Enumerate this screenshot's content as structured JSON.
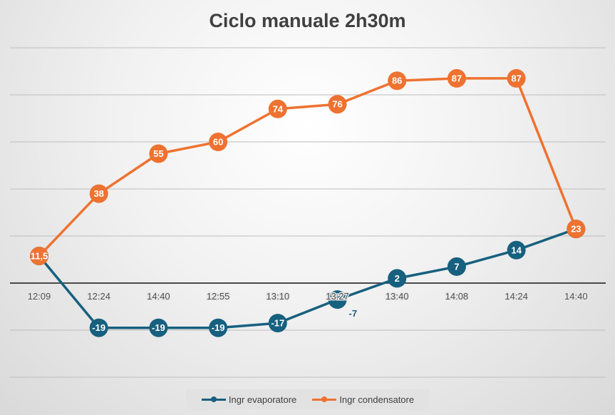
{
  "chart_data": {
    "type": "line",
    "title": "Ciclo manuale 2h30m",
    "categories": [
      "12:09",
      "12:24",
      "14:40",
      "12:55",
      "13:10",
      "13:27",
      "13:40",
      "14:08",
      "14:24",
      "14:40"
    ],
    "series": [
      {
        "name": "Ingr evaporatore",
        "color": "#17607f",
        "values": [
          11.5,
          -19,
          -19,
          -19,
          -17,
          -7,
          2,
          7,
          14,
          23
        ],
        "labels": [
          "",
          "-19",
          "-19",
          "-19",
          "-17",
          "-7",
          "2",
          "7",
          "14",
          ""
        ]
      },
      {
        "name": "Ingr condensatore",
        "color": "#ee7230",
        "values": [
          11.5,
          38,
          55,
          60,
          74,
          76,
          86,
          87,
          87,
          23
        ],
        "labels": [
          "11,5",
          "38",
          "55",
          "60",
          "74",
          "76",
          "86",
          "87",
          "87",
          "23"
        ]
      }
    ],
    "ylim": [
      -40,
      100
    ],
    "ygrid_step": 20,
    "grid": true,
    "legend": "bottom",
    "xlabel": "",
    "ylabel": ""
  }
}
